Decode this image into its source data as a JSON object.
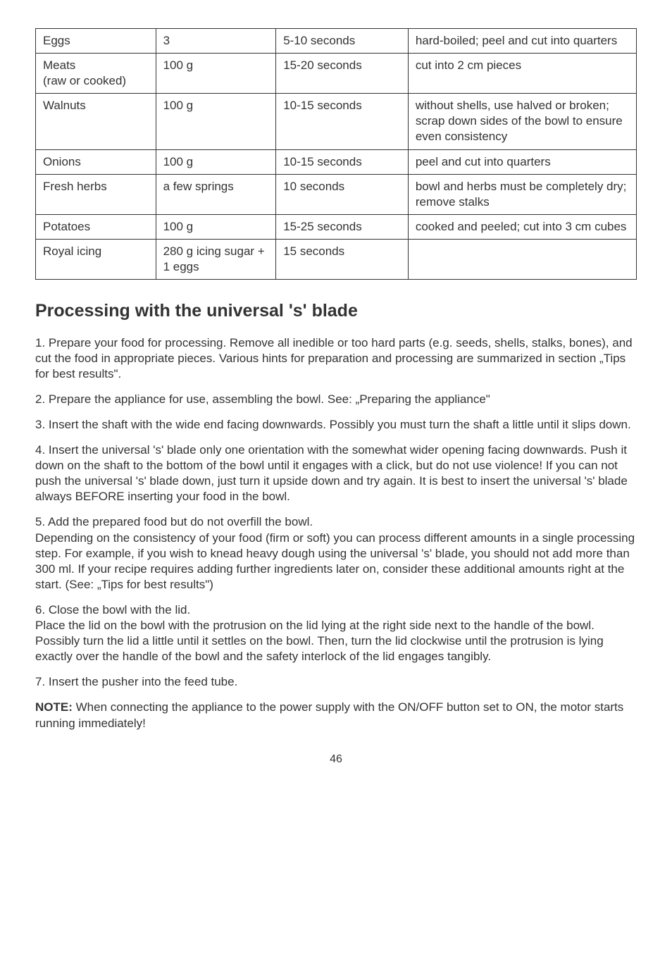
{
  "table": {
    "rows": [
      {
        "c1": "Eggs",
        "c2": "3",
        "c3": "5-10 seconds",
        "c4": "hard-boiled; peel and cut into quarters"
      },
      {
        "c1": "Meats\n(raw or cooked)",
        "c2": "100 g",
        "c3": "15-20 seconds",
        "c4": "cut into 2 cm pieces"
      },
      {
        "c1": "Walnuts",
        "c2": "100 g",
        "c3": "10-15 seconds",
        "c4": "without shells, use halved or broken; scrap down sides of the bowl to ensure even consistency"
      },
      {
        "c1": "Onions",
        "c2": "100 g",
        "c3": "10-15 seconds",
        "c4": "peel and cut into quarters"
      },
      {
        "c1": "Fresh herbs",
        "c2": "a few springs",
        "c3": "10 seconds",
        "c4": "bowl and herbs must be completely dry; remove stalks"
      },
      {
        "c1": "Potatoes",
        "c2": "100 g",
        "c3": "15-25 seconds",
        "c4": "cooked and peeled; cut into 3 cm cubes"
      },
      {
        "c1": "Royal icing",
        "c2": "280 g icing sugar + 1 eggs",
        "c3": "15 seconds",
        "c4": ""
      }
    ]
  },
  "heading": "Processing with the universal 's' blade",
  "p1": "1. Prepare your food for processing. Remove all inedible or too hard parts (e.g. seeds, shells, stalks, bones), and cut the food in appropriate pieces. Various hints for preparation and processing are summarized in section „Tips for best results\".",
  "p2": "2. Prepare the appliance for use, assembling the bowl. See: „Preparing the appliance\"",
  "p3": "3. Insert the shaft with the wide end facing downwards. Possibly you must turn the shaft a little until it slips down.",
  "p4": "4. Insert the universal 's' blade only one orientation with the somewhat wider opening facing downwards. Push it down on the shaft to the bottom of the bowl until it engages with a click, but do not use violence! If you can not push the universal 's' blade down, just turn it upside down and try again. It is best to insert the universal 's' blade always BEFORE inserting your food in the bowl.",
  "p5a": "5. Add the prepared food but do not overfill the bowl.",
  "p5b": "Depending on the consistency of your food (firm or soft) you can process different amounts in a single processing step. For example, if you wish to knead heavy dough using the universal 's' blade, you should not add more than 300 ml. If your recipe requires adding further ingredients later on, consider these additional amounts right at the start. (See: „Tips for best results\")",
  "p6a": "6. Close the bowl with the lid.",
  "p6b": "Place the lid on the bowl with the protrusion on the lid lying at the right side next to the handle of the bowl. Possibly turn the lid a little until it settles on the bowl. Then, turn the lid clockwise until the protrusion is lying exactly over the handle of the bowl and the safety interlock of the lid engages tangibly.",
  "p7": "7. Insert the pusher into the feed tube.",
  "note_label": "NOTE:",
  "note_text": " When connecting the appliance to the power supply with the ON/OFF button set to ON, the motor starts running immediately!",
  "page_number": "46"
}
